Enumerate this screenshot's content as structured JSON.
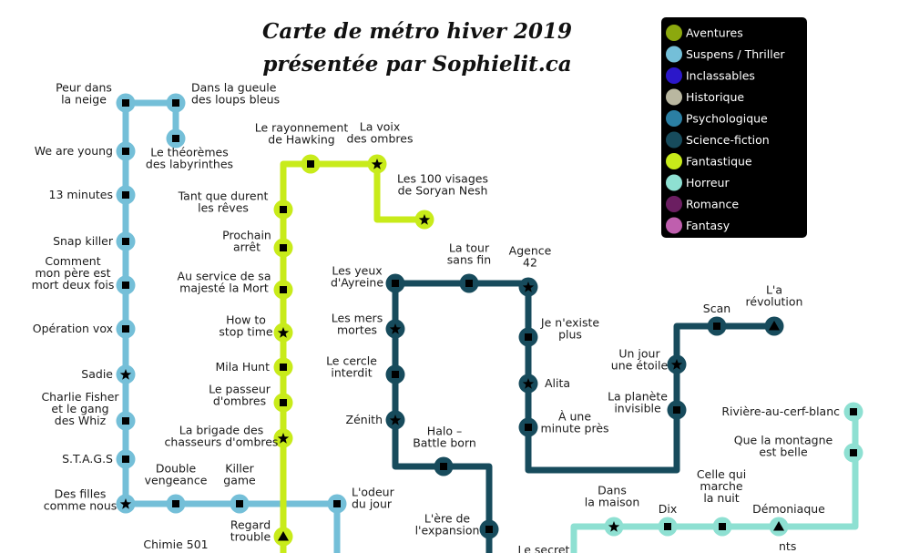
{
  "map": {
    "title_lines": [
      "Carte de métro hiver 2019",
      "présentée par Sophielit.ca"
    ],
    "legend": [
      {
        "label": "Aventures",
        "color": "#8ca80e"
      },
      {
        "label": "Suspens / Thriller",
        "color": "#74bfd8"
      },
      {
        "label": "Inclassables",
        "color": "#2b17c9"
      },
      {
        "label": "Historique",
        "color": "#b9b7a0"
      },
      {
        "label": "Psychologique",
        "color": "#2b7fa3"
      },
      {
        "label": "Science-fiction",
        "color": "#174b5c"
      },
      {
        "label": "Fantastique",
        "color": "#c8eb1a"
      },
      {
        "label": "Horreur",
        "color": "#8ee0d2"
      },
      {
        "label": "Romance",
        "color": "#6b1e61"
      },
      {
        "label": "Fantasy",
        "color": "#bf5fae"
      }
    ],
    "lines": [
      {
        "id": "suspens-line",
        "color": "#74bfd8"
      },
      {
        "id": "fantastique-line",
        "color": "#c8eb1a"
      },
      {
        "id": "scifi-line",
        "color": "#174b5c"
      },
      {
        "id": "horreur-line",
        "color": "#8ee0d2"
      }
    ],
    "stations": [
      {
        "name": "peur-dans-la-neige",
        "label": [
          "Peur dans",
          "la neige"
        ],
        "symbol": "square"
      },
      {
        "name": "dans-la-gueule-des-loups-bleus",
        "label": [
          "Dans la gueule",
          "des loups bleus"
        ],
        "symbol": "square"
      },
      {
        "name": "le-theoremes-des-labyrinthes",
        "label": [
          "Le théorèmes",
          "des labyrinthes"
        ],
        "symbol": "square"
      },
      {
        "name": "we-are-young",
        "label": [
          "We are young"
        ],
        "symbol": "square"
      },
      {
        "name": "13-minutes",
        "label": [
          "13 minutes"
        ],
        "symbol": "square"
      },
      {
        "name": "snap-killer",
        "label": [
          "Snap killer"
        ],
        "symbol": "square"
      },
      {
        "name": "comment-mon-pere-est-mort-deux-fois",
        "label": [
          "Comment",
          "mon père est",
          "mort deux fois"
        ],
        "symbol": "square"
      },
      {
        "name": "operation-vox",
        "label": [
          "Opération vox"
        ],
        "symbol": "square"
      },
      {
        "name": "sadie",
        "label": [
          "Sadie"
        ],
        "symbol": "star"
      },
      {
        "name": "charlie-fisher",
        "label": [
          "Charlie Fisher",
          "et le gang",
          "des Whiz"
        ],
        "symbol": "square"
      },
      {
        "name": "stags",
        "label": [
          "S.T.A.G.S"
        ],
        "symbol": "square"
      },
      {
        "name": "des-filles-comme-nous",
        "label": [
          "Des filles",
          "comme nous"
        ],
        "symbol": "star"
      },
      {
        "name": "double-vengeance",
        "label": [
          "Double",
          "vengeance"
        ],
        "symbol": "square"
      },
      {
        "name": "killer-game",
        "label": [
          "Killer",
          "game"
        ],
        "symbol": "square"
      },
      {
        "name": "l-odeur-du-jour",
        "label": [
          "L'odeur",
          "du jour"
        ],
        "symbol": "square"
      },
      {
        "name": "chimie-501",
        "label": [
          "Chimie 501"
        ],
        "symbol": "none"
      },
      {
        "name": "le-rayonnement-de-hawking",
        "label": [
          "Le rayonnement",
          "de Hawking"
        ],
        "symbol": "square"
      },
      {
        "name": "la-voix-des-ombres",
        "label": [
          "La voix",
          "des ombres"
        ],
        "symbol": "star"
      },
      {
        "name": "les-100-visages",
        "label": [
          "Les 100 visages",
          "de Soryan Nesh"
        ],
        "symbol": "star"
      },
      {
        "name": "tant-que-durent-les-reves",
        "label": [
          "Tant que durent",
          "les rêves"
        ],
        "symbol": "square"
      },
      {
        "name": "prochain-arret",
        "label": [
          "Prochain",
          "arrêt"
        ],
        "symbol": "square"
      },
      {
        "name": "au-service-de-sa-majeste-la-mort",
        "label": [
          "Au service de sa",
          "majesté la Mort"
        ],
        "symbol": "square"
      },
      {
        "name": "how-to-stop-time",
        "label": [
          "How to",
          "stop time"
        ],
        "symbol": "star"
      },
      {
        "name": "mila-hunt",
        "label": [
          "Mila Hunt"
        ],
        "symbol": "square"
      },
      {
        "name": "le-passeur-d-ombres",
        "label": [
          "Le passeur",
          "d'ombres"
        ],
        "symbol": "square"
      },
      {
        "name": "la-brigade-des-chasseurs-d-ombres",
        "label": [
          "La brigade des",
          "chasseurs d'ombres"
        ],
        "symbol": "star"
      },
      {
        "name": "regard-trouble",
        "label": [
          "Regard",
          "trouble"
        ],
        "symbol": "triangle"
      },
      {
        "name": "les-yeux-d-ayreine",
        "label": [
          "Les yeux",
          "d'Ayreine"
        ],
        "symbol": "square"
      },
      {
        "name": "la-tour-sans-fin",
        "label": [
          "La tour",
          "sans fin"
        ],
        "symbol": "square"
      },
      {
        "name": "agence-42",
        "label": [
          "Agence",
          "42"
        ],
        "symbol": "star"
      },
      {
        "name": "les-mers-mortes",
        "label": [
          "Les mers",
          "mortes"
        ],
        "symbol": "star"
      },
      {
        "name": "le-cercle-interdit",
        "label": [
          "Le cercle",
          "interdit"
        ],
        "symbol": "square"
      },
      {
        "name": "zenith",
        "label": [
          "Zénith"
        ],
        "symbol": "star"
      },
      {
        "name": "je-n-existe-plus",
        "label": [
          "Je n'existe",
          "plus"
        ],
        "symbol": "square"
      },
      {
        "name": "alita",
        "label": [
          "Alita"
        ],
        "symbol": "star"
      },
      {
        "name": "a-une-minute-pres",
        "label": [
          "À une",
          "minute près"
        ],
        "symbol": "square"
      },
      {
        "name": "halo-battle-born",
        "label": [
          "Halo –",
          "Battle born"
        ],
        "symbol": "square"
      },
      {
        "name": "l-ere-de-l-expansion",
        "label": [
          "L'ère de",
          "l'expansion"
        ],
        "symbol": "square"
      },
      {
        "name": "le-secret",
        "label": [
          "Le secret"
        ],
        "symbol": "none"
      },
      {
        "name": "un-jour-une-etoile",
        "label": [
          "Un jour",
          "une étoile"
        ],
        "symbol": "star"
      },
      {
        "name": "la-planete-invisible",
        "label": [
          "La planète",
          "invisible"
        ],
        "symbol": "square"
      },
      {
        "name": "scan",
        "label": [
          "Scan"
        ],
        "symbol": "square"
      },
      {
        "name": "l-a-revolution",
        "label": [
          "L'a",
          "révolution"
        ],
        "symbol": "triangle"
      },
      {
        "name": "riviere-au-cerf-blanc",
        "label": [
          "Rivière-au-cerf-blanc"
        ],
        "symbol": "square"
      },
      {
        "name": "que-la-montagne-est-belle",
        "label": [
          "Que la montagne",
          "est belle"
        ],
        "symbol": "square"
      },
      {
        "name": "dans-la-maison",
        "label": [
          "Dans",
          "la maison"
        ],
        "symbol": "star"
      },
      {
        "name": "dix",
        "label": [
          "Dix"
        ],
        "symbol": "square"
      },
      {
        "name": "celle-qui-marche-la-nuit",
        "label": [
          "Celle qui",
          "marche",
          "la nuit"
        ],
        "symbol": "square"
      },
      {
        "name": "demoniaque",
        "label": [
          "Démoniaque"
        ],
        "symbol": "triangle"
      },
      {
        "name": "cut-label",
        "label": [
          "nts"
        ],
        "symbol": "none"
      }
    ]
  }
}
